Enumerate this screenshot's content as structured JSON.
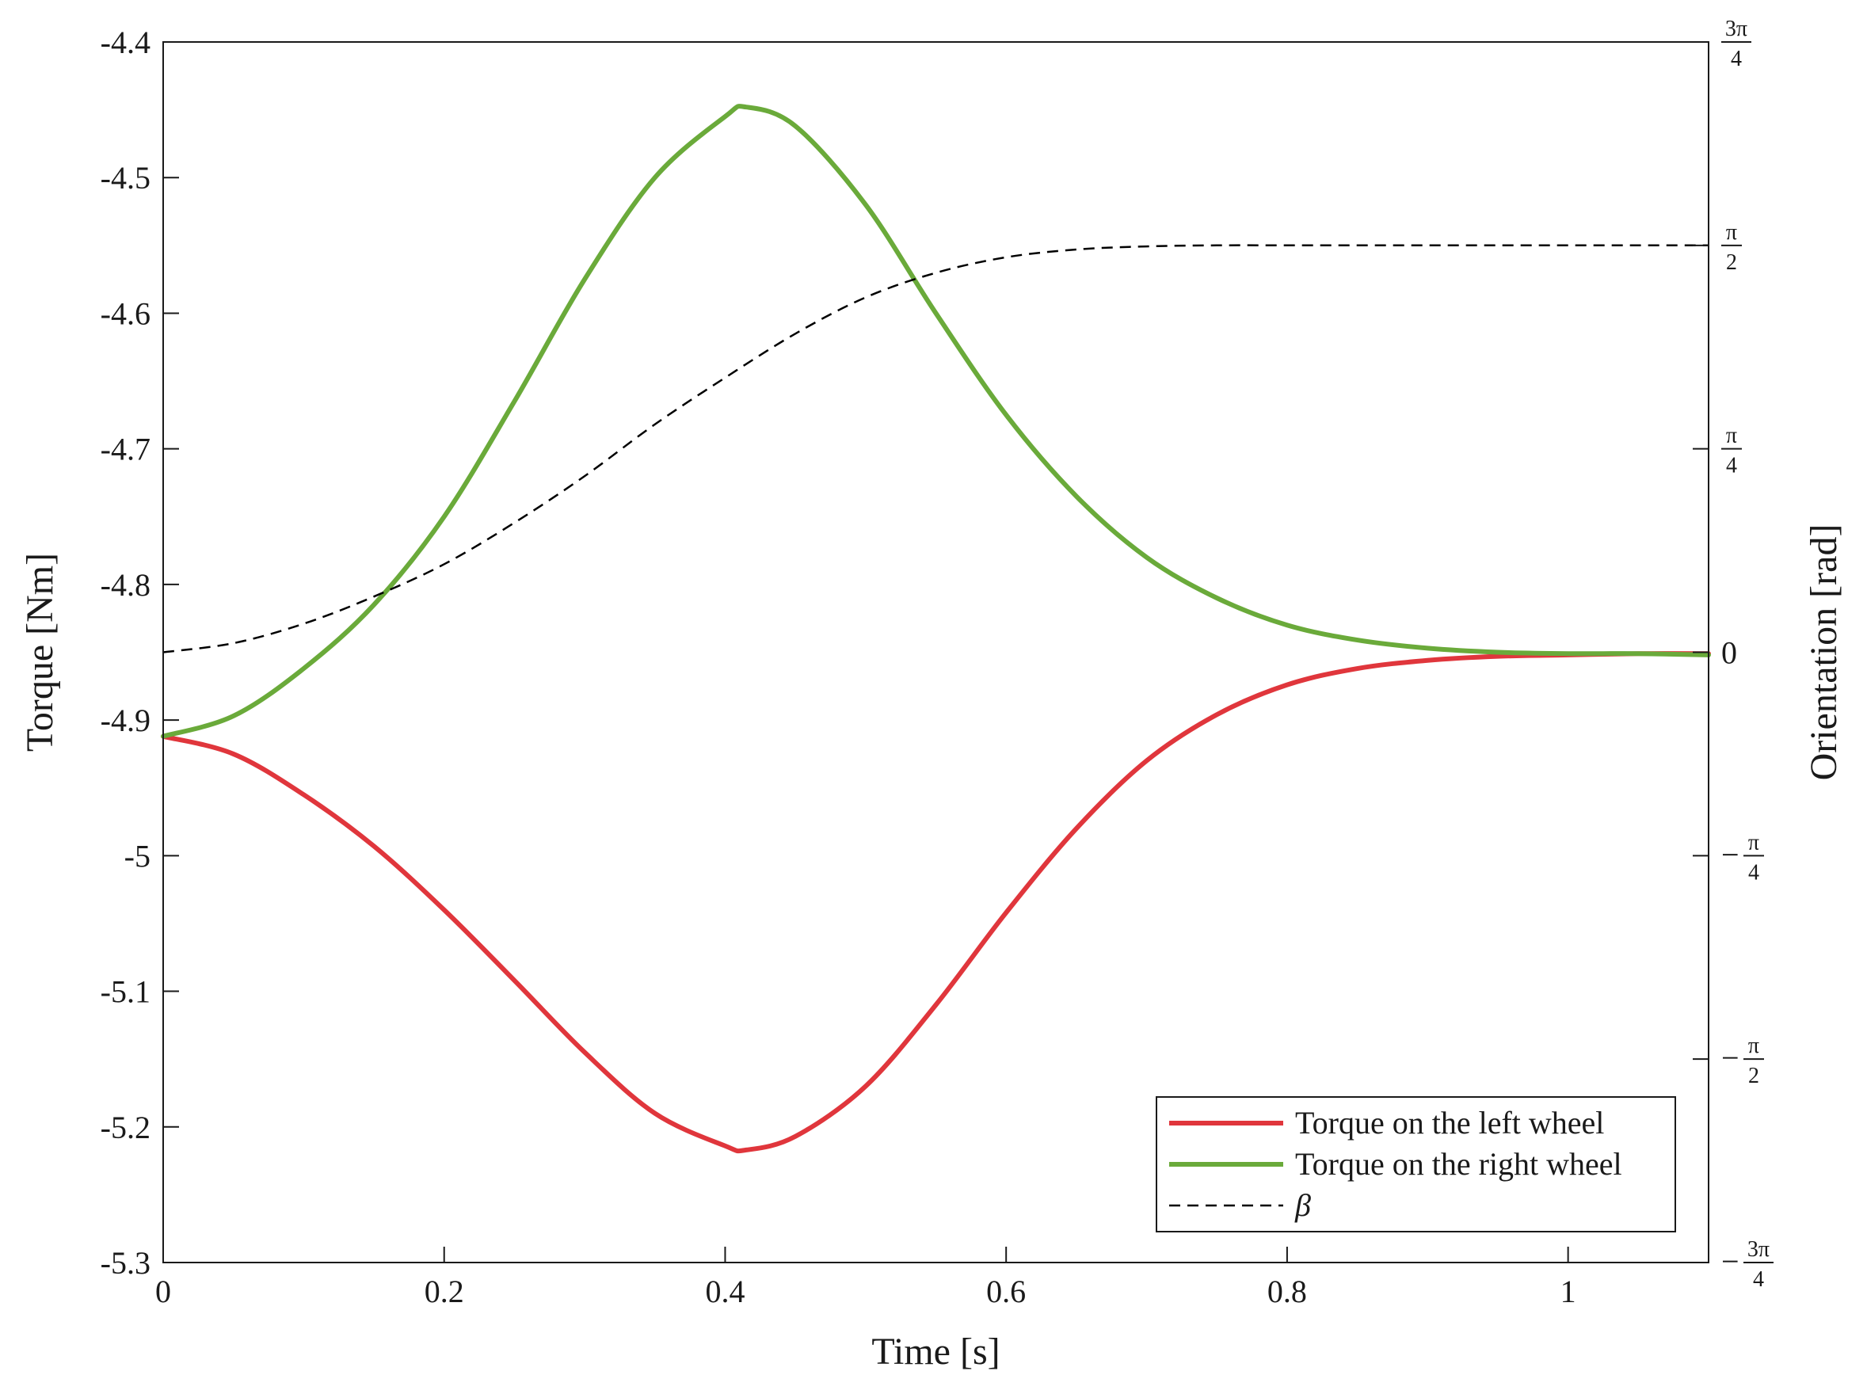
{
  "chart_data": {
    "type": "line",
    "xlabel": "Time [s]",
    "ylabel": "Torque [Nm]",
    "ylabel_right": "Orientation [rad]",
    "xlim": [
      0,
      1.1
    ],
    "ylim": [
      -5.3,
      -4.4
    ],
    "ylim_right": [
      -2.35619,
      2.35619
    ],
    "x_ticks": [
      0,
      0.2,
      0.4,
      0.6,
      0.8,
      1
    ],
    "x_tick_labels": [
      "0",
      "0.2",
      "0.4",
      "0.6",
      "0.8",
      "1"
    ],
    "y_ticks": [
      -5.3,
      -5.2,
      -5.1,
      -5,
      -4.9,
      -4.8,
      -4.7,
      -4.6,
      -4.5,
      -4.4
    ],
    "y_tick_labels": [
      "-5.3",
      "-5.2",
      "-5.1",
      "-5",
      "-4.9",
      "-4.8",
      "-4.7",
      "-4.6",
      "-4.5",
      "-4.4"
    ],
    "y_right_ticks": [
      {
        "value": -2.35619,
        "sign": "−",
        "num": "3π",
        "den": "4"
      },
      {
        "value": -1.5708,
        "sign": "−",
        "num": "π",
        "den": "2"
      },
      {
        "value": -0.7854,
        "sign": "−",
        "num": "π",
        "den": "4"
      },
      {
        "value": 0,
        "plain": "0"
      },
      {
        "value": 0.7854,
        "sign": "",
        "num": "π",
        "den": "4"
      },
      {
        "value": 1.5708,
        "sign": "",
        "num": "π",
        "den": "2"
      },
      {
        "value": 2.35619,
        "sign": "",
        "num": "3π",
        "den": "4"
      }
    ],
    "grid": false,
    "legend_position": "bottom-right",
    "series": [
      {
        "name": "Torque on the left wheel",
        "axis": "left",
        "color": "#e0363c",
        "style": "solid",
        "x": [
          0,
          0.05,
          0.1,
          0.15,
          0.2,
          0.25,
          0.3,
          0.35,
          0.4,
          0.415,
          0.45,
          0.5,
          0.55,
          0.6,
          0.65,
          0.7,
          0.75,
          0.8,
          0.85,
          0.9,
          0.95,
          1.0,
          1.05,
          1.1
        ],
        "values": [
          -4.912,
          -4.925,
          -4.955,
          -4.993,
          -5.04,
          -5.092,
          -5.145,
          -5.19,
          -5.214,
          -5.217,
          -5.207,
          -5.17,
          -5.11,
          -5.042,
          -4.98,
          -4.93,
          -4.896,
          -4.874,
          -4.862,
          -4.856,
          -4.853,
          -4.852,
          -4.851,
          -4.851
        ]
      },
      {
        "name": "Torque on the right wheel",
        "axis": "left",
        "color": "#6aaa3a",
        "style": "solid",
        "x": [
          0,
          0.05,
          0.1,
          0.15,
          0.2,
          0.25,
          0.3,
          0.35,
          0.4,
          0.415,
          0.45,
          0.5,
          0.55,
          0.6,
          0.65,
          0.7,
          0.75,
          0.8,
          0.85,
          0.9,
          0.95,
          1.0,
          1.05,
          1.1
        ],
        "values": [
          -4.912,
          -4.897,
          -4.862,
          -4.815,
          -4.75,
          -4.665,
          -4.575,
          -4.5,
          -4.455,
          -4.448,
          -4.462,
          -4.52,
          -4.6,
          -4.675,
          -4.735,
          -4.78,
          -4.81,
          -4.83,
          -4.841,
          -4.847,
          -4.85,
          -4.851,
          -4.851,
          -4.852
        ]
      },
      {
        "name": "β",
        "axis": "right",
        "color": "#000000",
        "style": "dashed",
        "x": [
          0,
          0.05,
          0.1,
          0.15,
          0.2,
          0.25,
          0.3,
          0.35,
          0.4,
          0.45,
          0.5,
          0.55,
          0.6,
          0.65,
          0.7,
          0.75,
          0.8,
          0.85,
          0.9,
          0.95,
          1.0,
          1.05,
          1.1
        ],
        "values": [
          0,
          0.035,
          0.11,
          0.215,
          0.34,
          0.5,
          0.68,
          0.88,
          1.06,
          1.23,
          1.37,
          1.465,
          1.525,
          1.555,
          1.567,
          1.571,
          1.571,
          1.571,
          1.571,
          1.571,
          1.571,
          1.571,
          1.571
        ]
      }
    ]
  }
}
